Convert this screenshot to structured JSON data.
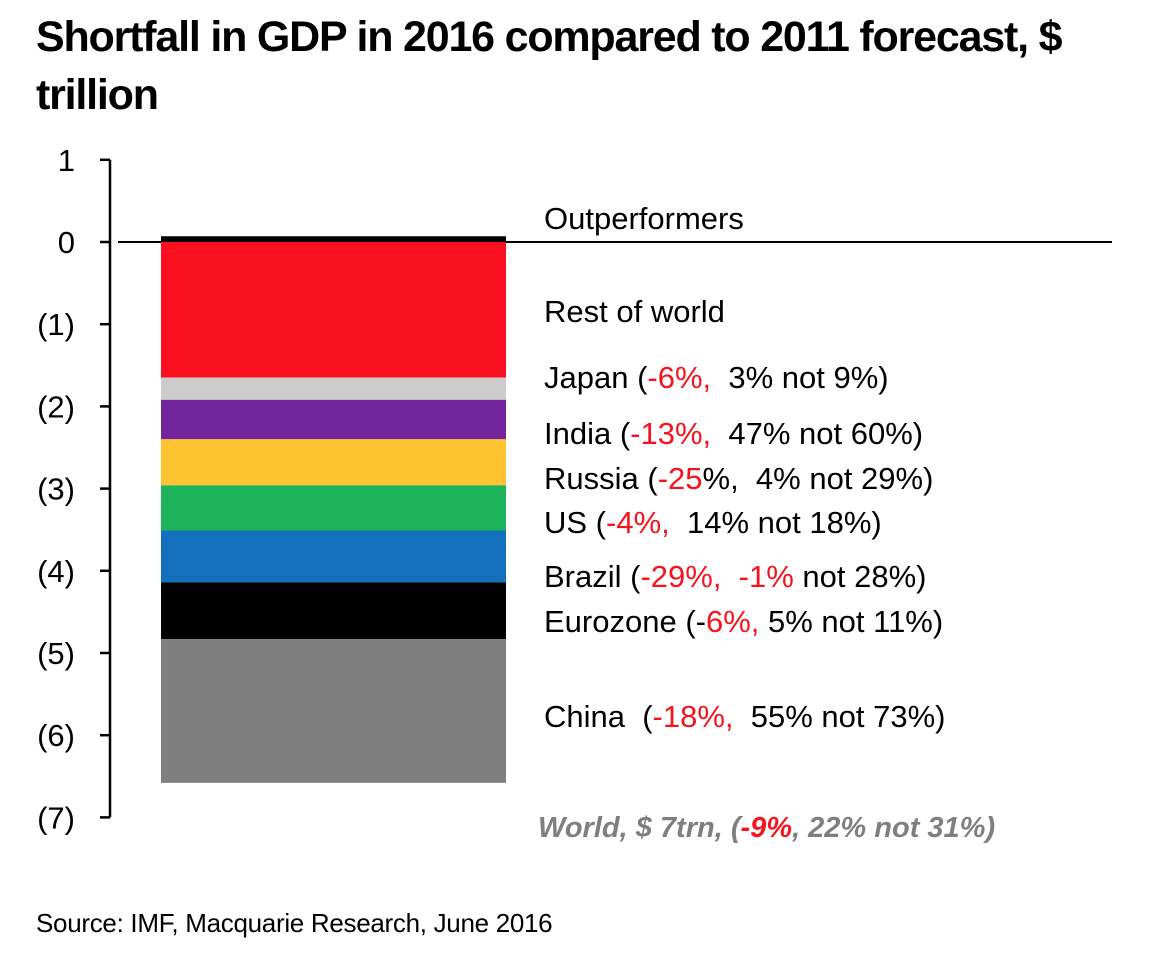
{
  "chart_data": {
    "type": "bar",
    "subtype": "stacked-waterfall",
    "title": "Shortfall in GDP in 2016 compared to 2011 forecast, $ trillion",
    "xlabel": "",
    "ylabel": "",
    "ylim": [
      -7,
      1
    ],
    "yticks": [
      1,
      0,
      -1,
      -2,
      -3,
      -4,
      -5,
      -6,
      -7
    ],
    "ytick_labels": [
      "1",
      "0",
      "(1)",
      "(2)",
      "(3)",
      "(4)",
      "(5)",
      "(6)",
      "(7)"
    ],
    "grid": false,
    "zero_line": true,
    "segments": [
      {
        "name": "Outperformers",
        "value": 0.07,
        "color": "#000000",
        "label_parts": [
          {
            "text": "Outperformers",
            "red": false
          }
        ]
      },
      {
        "name": "Rest of world",
        "value": -1.65,
        "color": "#f90f1e",
        "label_parts": [
          {
            "text": "Rest of world",
            "red": false
          }
        ]
      },
      {
        "name": "Japan",
        "value": -0.27,
        "color": "#cccccc",
        "label_parts": [
          {
            "text": "Japan (",
            "red": false
          },
          {
            "text": "-6%,",
            "red": true
          },
          {
            "text": "  3% not 9%)",
            "red": false
          }
        ]
      },
      {
        "name": "India",
        "value": -0.48,
        "color": "#73239c",
        "label_parts": [
          {
            "text": "India (",
            "red": false
          },
          {
            "text": "-13%,",
            "red": true
          },
          {
            "text": "  47% not 60%)",
            "red": false
          }
        ]
      },
      {
        "name": "Russia",
        "value": -0.56,
        "color": "#fec32f",
        "label_parts": [
          {
            "text": "Russia (",
            "red": false
          },
          {
            "text": "-25",
            "red": true
          },
          {
            "text": "%,  4% not 29%)",
            "red": false
          }
        ]
      },
      {
        "name": "US",
        "value": -0.55,
        "color": "#1db35a",
        "label_parts": [
          {
            "text": "US (",
            "red": false
          },
          {
            "text": "-4%,",
            "red": true
          },
          {
            "text": "  14% not 18%)",
            "red": false
          }
        ]
      },
      {
        "name": "Brazil",
        "value": -0.63,
        "color": "#1470bd",
        "label_parts": [
          {
            "text": "Brazil (",
            "red": false
          },
          {
            "text": "-29%,  -1%",
            "red": true
          },
          {
            "text": " not 28%)",
            "red": false
          }
        ]
      },
      {
        "name": "Eurozone",
        "value": -0.69,
        "color": "#000000",
        "label_parts": [
          {
            "text": "Eurozone (-",
            "red": false
          },
          {
            "text": "6%,",
            "red": true
          },
          {
            "text": " 5% not 11%)",
            "red": false
          }
        ]
      },
      {
        "name": "China",
        "value": -1.75,
        "color": "#7f7f7f",
        "label_parts": [
          {
            "text": "China  (",
            "red": false
          },
          {
            "text": "-18%,",
            "red": true
          },
          {
            "text": "  55% not 73%)",
            "red": false
          }
        ]
      }
    ],
    "total_label_parts": [
      {
        "text": "World, $ 7trn, (",
        "red": false
      },
      {
        "text": "-9%",
        "red": true
      },
      {
        "text": ", 22% not 31%)",
        "red": false
      }
    ],
    "total_value": -7
  },
  "title": "Shortfall in GDP in 2016 compared to 2011 forecast, $ trillion",
  "source": "Source: IMF, Macquarie Research, June 2016"
}
